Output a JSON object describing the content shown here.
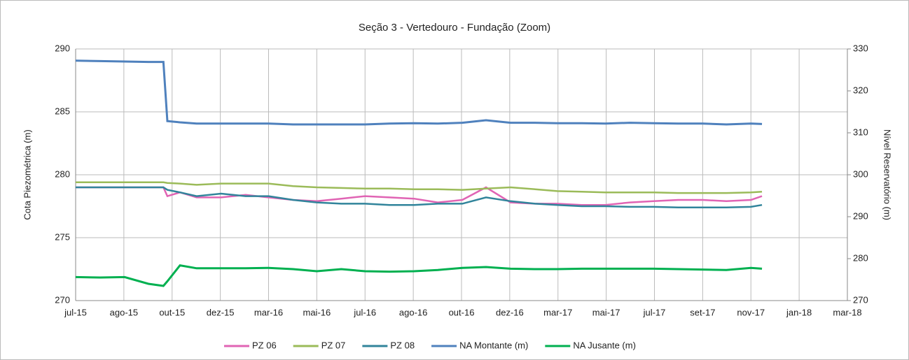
{
  "chart_data": {
    "type": "line",
    "title": "Seção 3 - Vertedouro - Fundação (Zoom)",
    "ylabel": "Cota Piezométrica (m)",
    "y2label": "Nível Reservatório (m)",
    "x": [
      "2015-07-01",
      "2015-08-01",
      "2015-09-01",
      "2015-10-01",
      "2015-10-20",
      "2015-10-25",
      "2015-11-10",
      "2015-12-01",
      "2016-01-01",
      "2016-02-01",
      "2016-03-01",
      "2016-04-01",
      "2016-05-01",
      "2016-06-01",
      "2016-07-01",
      "2016-08-01",
      "2016-09-01",
      "2016-10-01",
      "2016-11-01",
      "2016-12-01",
      "2017-01-01",
      "2017-02-01",
      "2017-03-01",
      "2017-04-01",
      "2017-05-01",
      "2017-06-01",
      "2017-07-01",
      "2017-08-01",
      "2017-09-01",
      "2017-10-01",
      "2017-11-01",
      "2017-11-15"
    ],
    "xlim": [
      "2015-07-01",
      "2018-03-03"
    ],
    "xticks": [
      {
        "value": "2015-07-01",
        "label": "jul-15"
      },
      {
        "value": "2015-08-31",
        "label": "ago-15"
      },
      {
        "value": "2015-10-31",
        "label": "out-15"
      },
      {
        "value": "2015-12-31",
        "label": "dez-15"
      },
      {
        "value": "2016-03-01",
        "label": "mar-16"
      },
      {
        "value": "2016-05-01",
        "label": "mai-16"
      },
      {
        "value": "2016-07-01",
        "label": "jul-16"
      },
      {
        "value": "2016-08-31",
        "label": "ago-16"
      },
      {
        "value": "2016-10-31",
        "label": "out-16"
      },
      {
        "value": "2016-12-31",
        "label": "dez-16"
      },
      {
        "value": "2017-03-02",
        "label": "mar-17"
      },
      {
        "value": "2017-05-02",
        "label": "mai-17"
      },
      {
        "value": "2017-07-02",
        "label": "jul-17"
      },
      {
        "value": "2017-09-01",
        "label": "set-17"
      },
      {
        "value": "2017-11-01",
        "label": "nov-17"
      },
      {
        "value": "2018-01-01",
        "label": "jan-18"
      },
      {
        "value": "2018-03-03",
        "label": "mar-18"
      }
    ],
    "ylim": [
      270,
      290
    ],
    "yticks": [
      270,
      275,
      280,
      285,
      290
    ],
    "y2lim": [
      270,
      330
    ],
    "y2ticks": [
      270,
      280,
      290,
      300,
      310,
      320,
      330
    ],
    "grid": true,
    "legend": "bottom",
    "series": [
      {
        "name": "PZ 06",
        "color": "#e064b4",
        "values": [
          279,
          279,
          279,
          279,
          279,
          278.3,
          278.6,
          278.2,
          278.2,
          278.4,
          278.2,
          278.0,
          277.9,
          278.1,
          278.3,
          278.2,
          278.1,
          277.8,
          278.0,
          279.0,
          277.8,
          277.7,
          277.7,
          277.6,
          277.6,
          277.8,
          277.9,
          278.0,
          278.0,
          277.9,
          278.0,
          278.3
        ]
      },
      {
        "name": "PZ 07",
        "color": "#9bbb59",
        "values": [
          279.4,
          279.4,
          279.4,
          279.4,
          279.4,
          279.35,
          279.3,
          279.2,
          279.3,
          279.3,
          279.3,
          279.1,
          279.0,
          278.95,
          278.9,
          278.9,
          278.85,
          278.85,
          278.8,
          278.9,
          279.0,
          278.85,
          278.7,
          278.65,
          278.6,
          278.6,
          278.6,
          278.55,
          278.55,
          278.55,
          278.6,
          278.65
        ]
      },
      {
        "name": "PZ 08",
        "color": "#31849b",
        "values": [
          279,
          279,
          279,
          279,
          279,
          278.8,
          278.6,
          278.3,
          278.5,
          278.3,
          278.3,
          278.0,
          277.8,
          277.7,
          277.7,
          277.6,
          277.6,
          277.7,
          277.7,
          278.2,
          277.9,
          277.7,
          277.6,
          277.5,
          277.5,
          277.45,
          277.45,
          277.4,
          277.4,
          277.4,
          277.45,
          277.6
        ]
      },
      {
        "name": "NA Montante (m)",
        "color": "#4f81bd",
        "axis": "y2",
        "values": [
          327.2,
          327.1,
          327,
          326.9,
          326.9,
          312.8,
          312.5,
          312.2,
          312.2,
          312.2,
          312.2,
          312,
          312,
          312,
          312,
          312.2,
          312.3,
          312.2,
          312.4,
          313,
          312.4,
          312.4,
          312.3,
          312.3,
          312.2,
          312.4,
          312.3,
          312.2,
          312.2,
          312,
          312.2,
          312.1
        ]
      },
      {
        "name": "NA Jusante (m)",
        "color": "#00b050",
        "axis": "y2",
        "values": [
          275.6,
          275.5,
          275.6,
          274,
          273.5,
          274.6,
          278.4,
          277.7,
          277.7,
          277.7,
          277.8,
          277.5,
          277,
          277.5,
          277,
          276.9,
          277,
          277.3,
          277.8,
          278,
          277.6,
          277.5,
          277.5,
          277.6,
          277.6,
          277.6,
          277.6,
          277.5,
          277.4,
          277.3,
          277.8,
          277.6
        ]
      }
    ]
  }
}
